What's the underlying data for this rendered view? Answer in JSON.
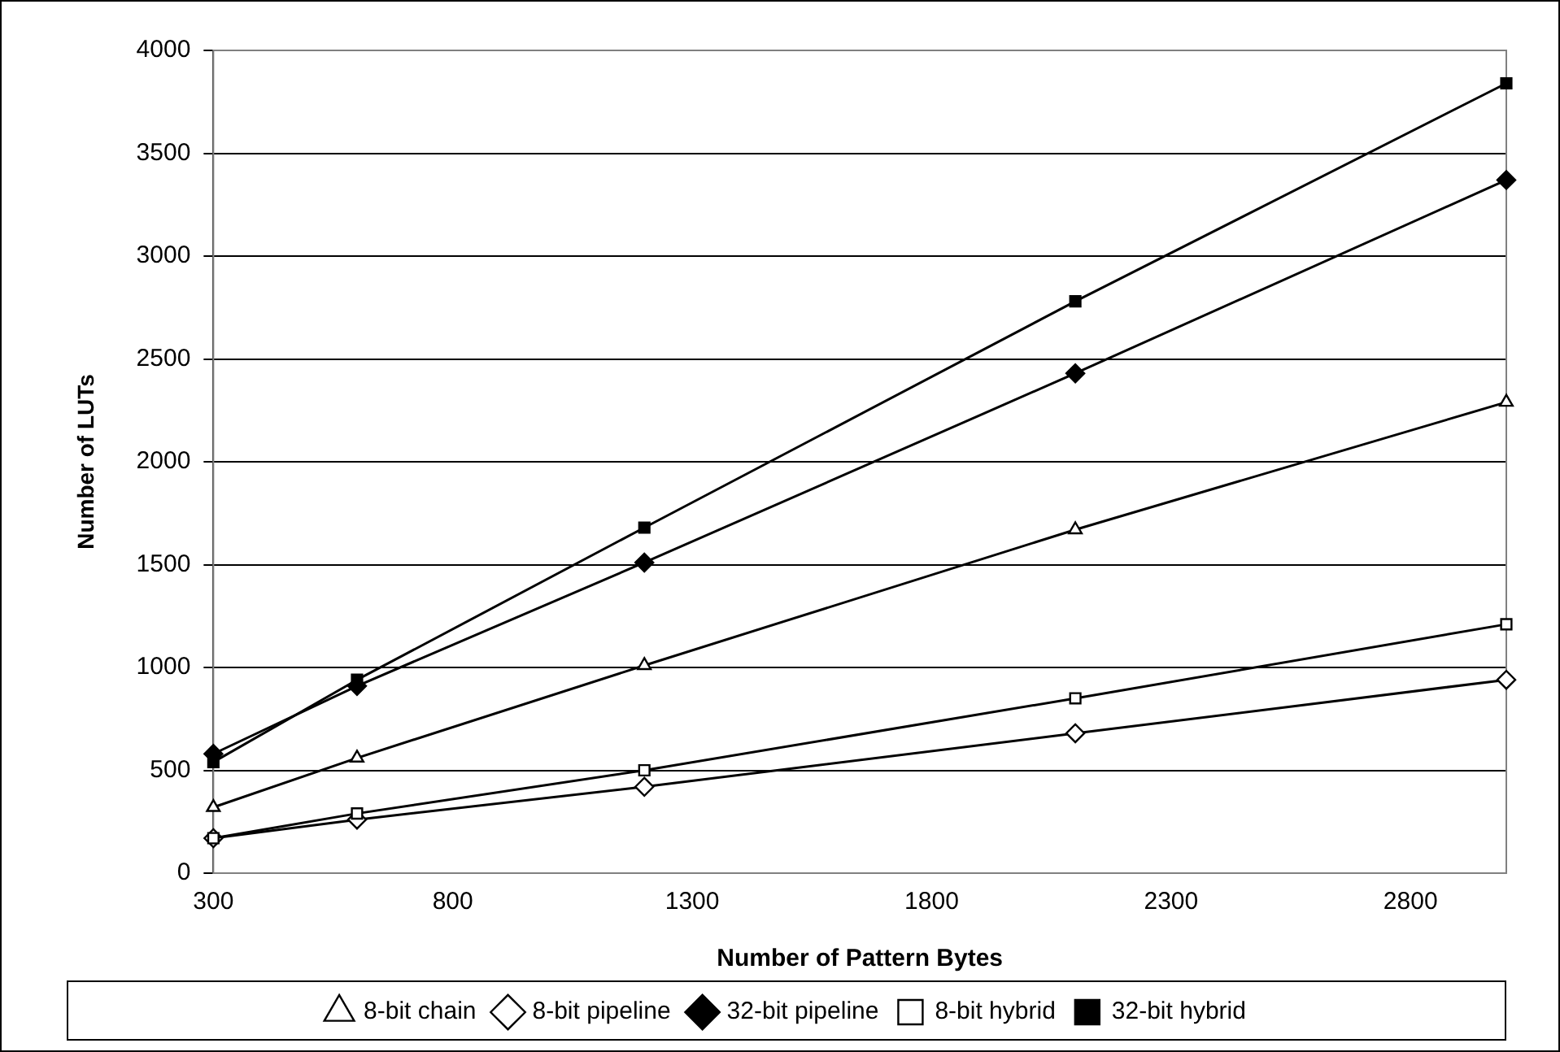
{
  "chart_data": {
    "type": "line",
    "xlabel": "Number of Pattern Bytes",
    "ylabel": "Number of LUTs",
    "x": [
      300,
      600,
      1200,
      2100,
      3000
    ],
    "xlim": [
      300,
      3000
    ],
    "xticks": [
      300,
      800,
      1300,
      1800,
      2300,
      2800
    ],
    "ylim": [
      0,
      4000
    ],
    "yticks": [
      0,
      500,
      1000,
      1500,
      2000,
      2500,
      3000,
      3500,
      4000
    ],
    "grid": "y",
    "legend": "bottom",
    "line_style": "solid",
    "series": [
      {
        "name": "8-bit chain",
        "color": "#ffffff",
        "marker": "triangle",
        "values": [
          320,
          560,
          1010,
          1670,
          2290
        ]
      },
      {
        "name": "8-bit pipeline",
        "color": "#ffffff",
        "marker": "diamond",
        "values": [
          170,
          260,
          420,
          680,
          940
        ]
      },
      {
        "name": "32-bit pipeline",
        "color": "#000000",
        "marker": "diamond",
        "values": [
          580,
          910,
          1510,
          2430,
          3370
        ]
      },
      {
        "name": "8-bit hybrid",
        "color": "#ffffff",
        "marker": "square",
        "values": [
          170,
          290,
          500,
          850,
          1210
        ]
      },
      {
        "name": "32-bit hybrid",
        "color": "#000000",
        "marker": "square",
        "values": [
          540,
          940,
          1680,
          2780,
          3840
        ]
      }
    ]
  }
}
